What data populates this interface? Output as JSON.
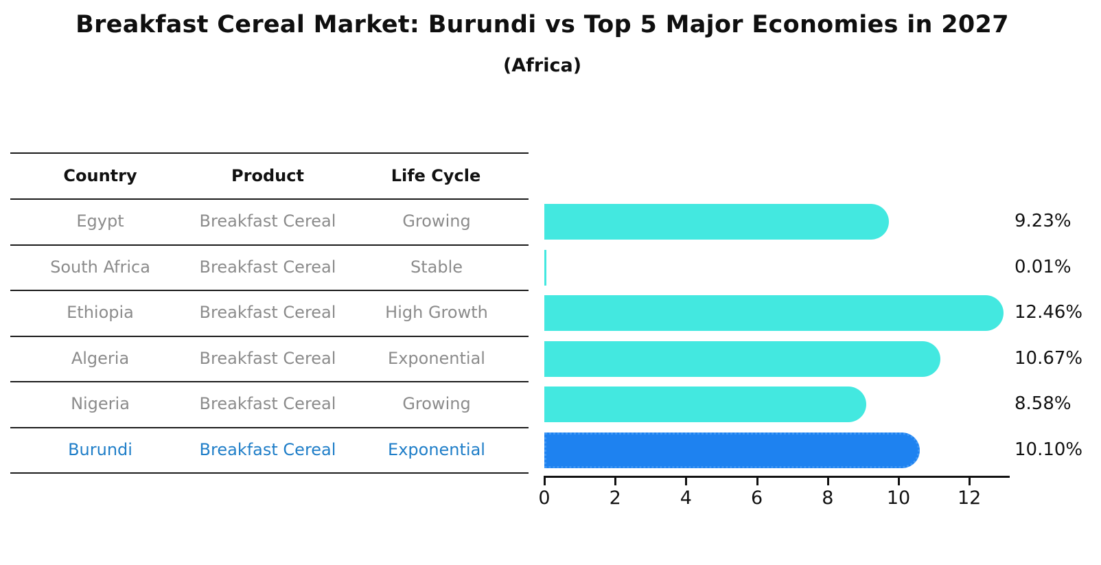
{
  "title": "Breakfast Cereal Market: Burundi vs Top 5 Major Economies in 2027",
  "subtitle": "(Africa)",
  "table": {
    "headers": [
      "Country",
      "Product",
      "Life Cycle"
    ],
    "rows": [
      {
        "country": "Egypt",
        "product": "Breakfast Cereal",
        "life_cycle": "Growing",
        "highlight": false
      },
      {
        "country": "South Africa",
        "product": "Breakfast Cereal",
        "life_cycle": "Stable",
        "highlight": false
      },
      {
        "country": "Ethiopia",
        "product": "Breakfast Cereal",
        "life_cycle": "High Growth",
        "highlight": false
      },
      {
        "country": "Algeria",
        "product": "Breakfast Cereal",
        "life_cycle": "Exponential",
        "highlight": false
      },
      {
        "country": "Nigeria",
        "product": "Breakfast Cereal",
        "life_cycle": "Growing",
        "highlight": false
      },
      {
        "country": "Burundi",
        "product": "Breakfast Cereal",
        "life_cycle": "Exponential",
        "highlight": true
      }
    ]
  },
  "chart_data": {
    "type": "bar",
    "orientation": "horizontal",
    "title": "Breakfast Cereal Market: Burundi vs Top 5 Major Economies in 2027",
    "subtitle": "(Africa)",
    "categories": [
      "Egypt",
      "South Africa",
      "Ethiopia",
      "Algeria",
      "Nigeria",
      "Burundi"
    ],
    "values": [
      9.23,
      0.01,
      12.46,
      10.67,
      8.58,
      10.1
    ],
    "value_labels": [
      "9.23%",
      "0.01%",
      "12.46%",
      "10.67%",
      "8.58%",
      "10.10%"
    ],
    "x_ticks": [
      0,
      2,
      4,
      6,
      8,
      10,
      12
    ],
    "xlim": [
      0,
      13.1
    ],
    "xlabel": "",
    "ylabel": "",
    "grid": false,
    "legend": false,
    "bar_color": "#43e8e0",
    "highlight_index": 5,
    "highlight_bar_color": "#1e82f0",
    "highlight_border_color": "#3f97f5",
    "highlight_text_color": "#1f7ec8",
    "row_text_color": "#8b8b8b"
  }
}
